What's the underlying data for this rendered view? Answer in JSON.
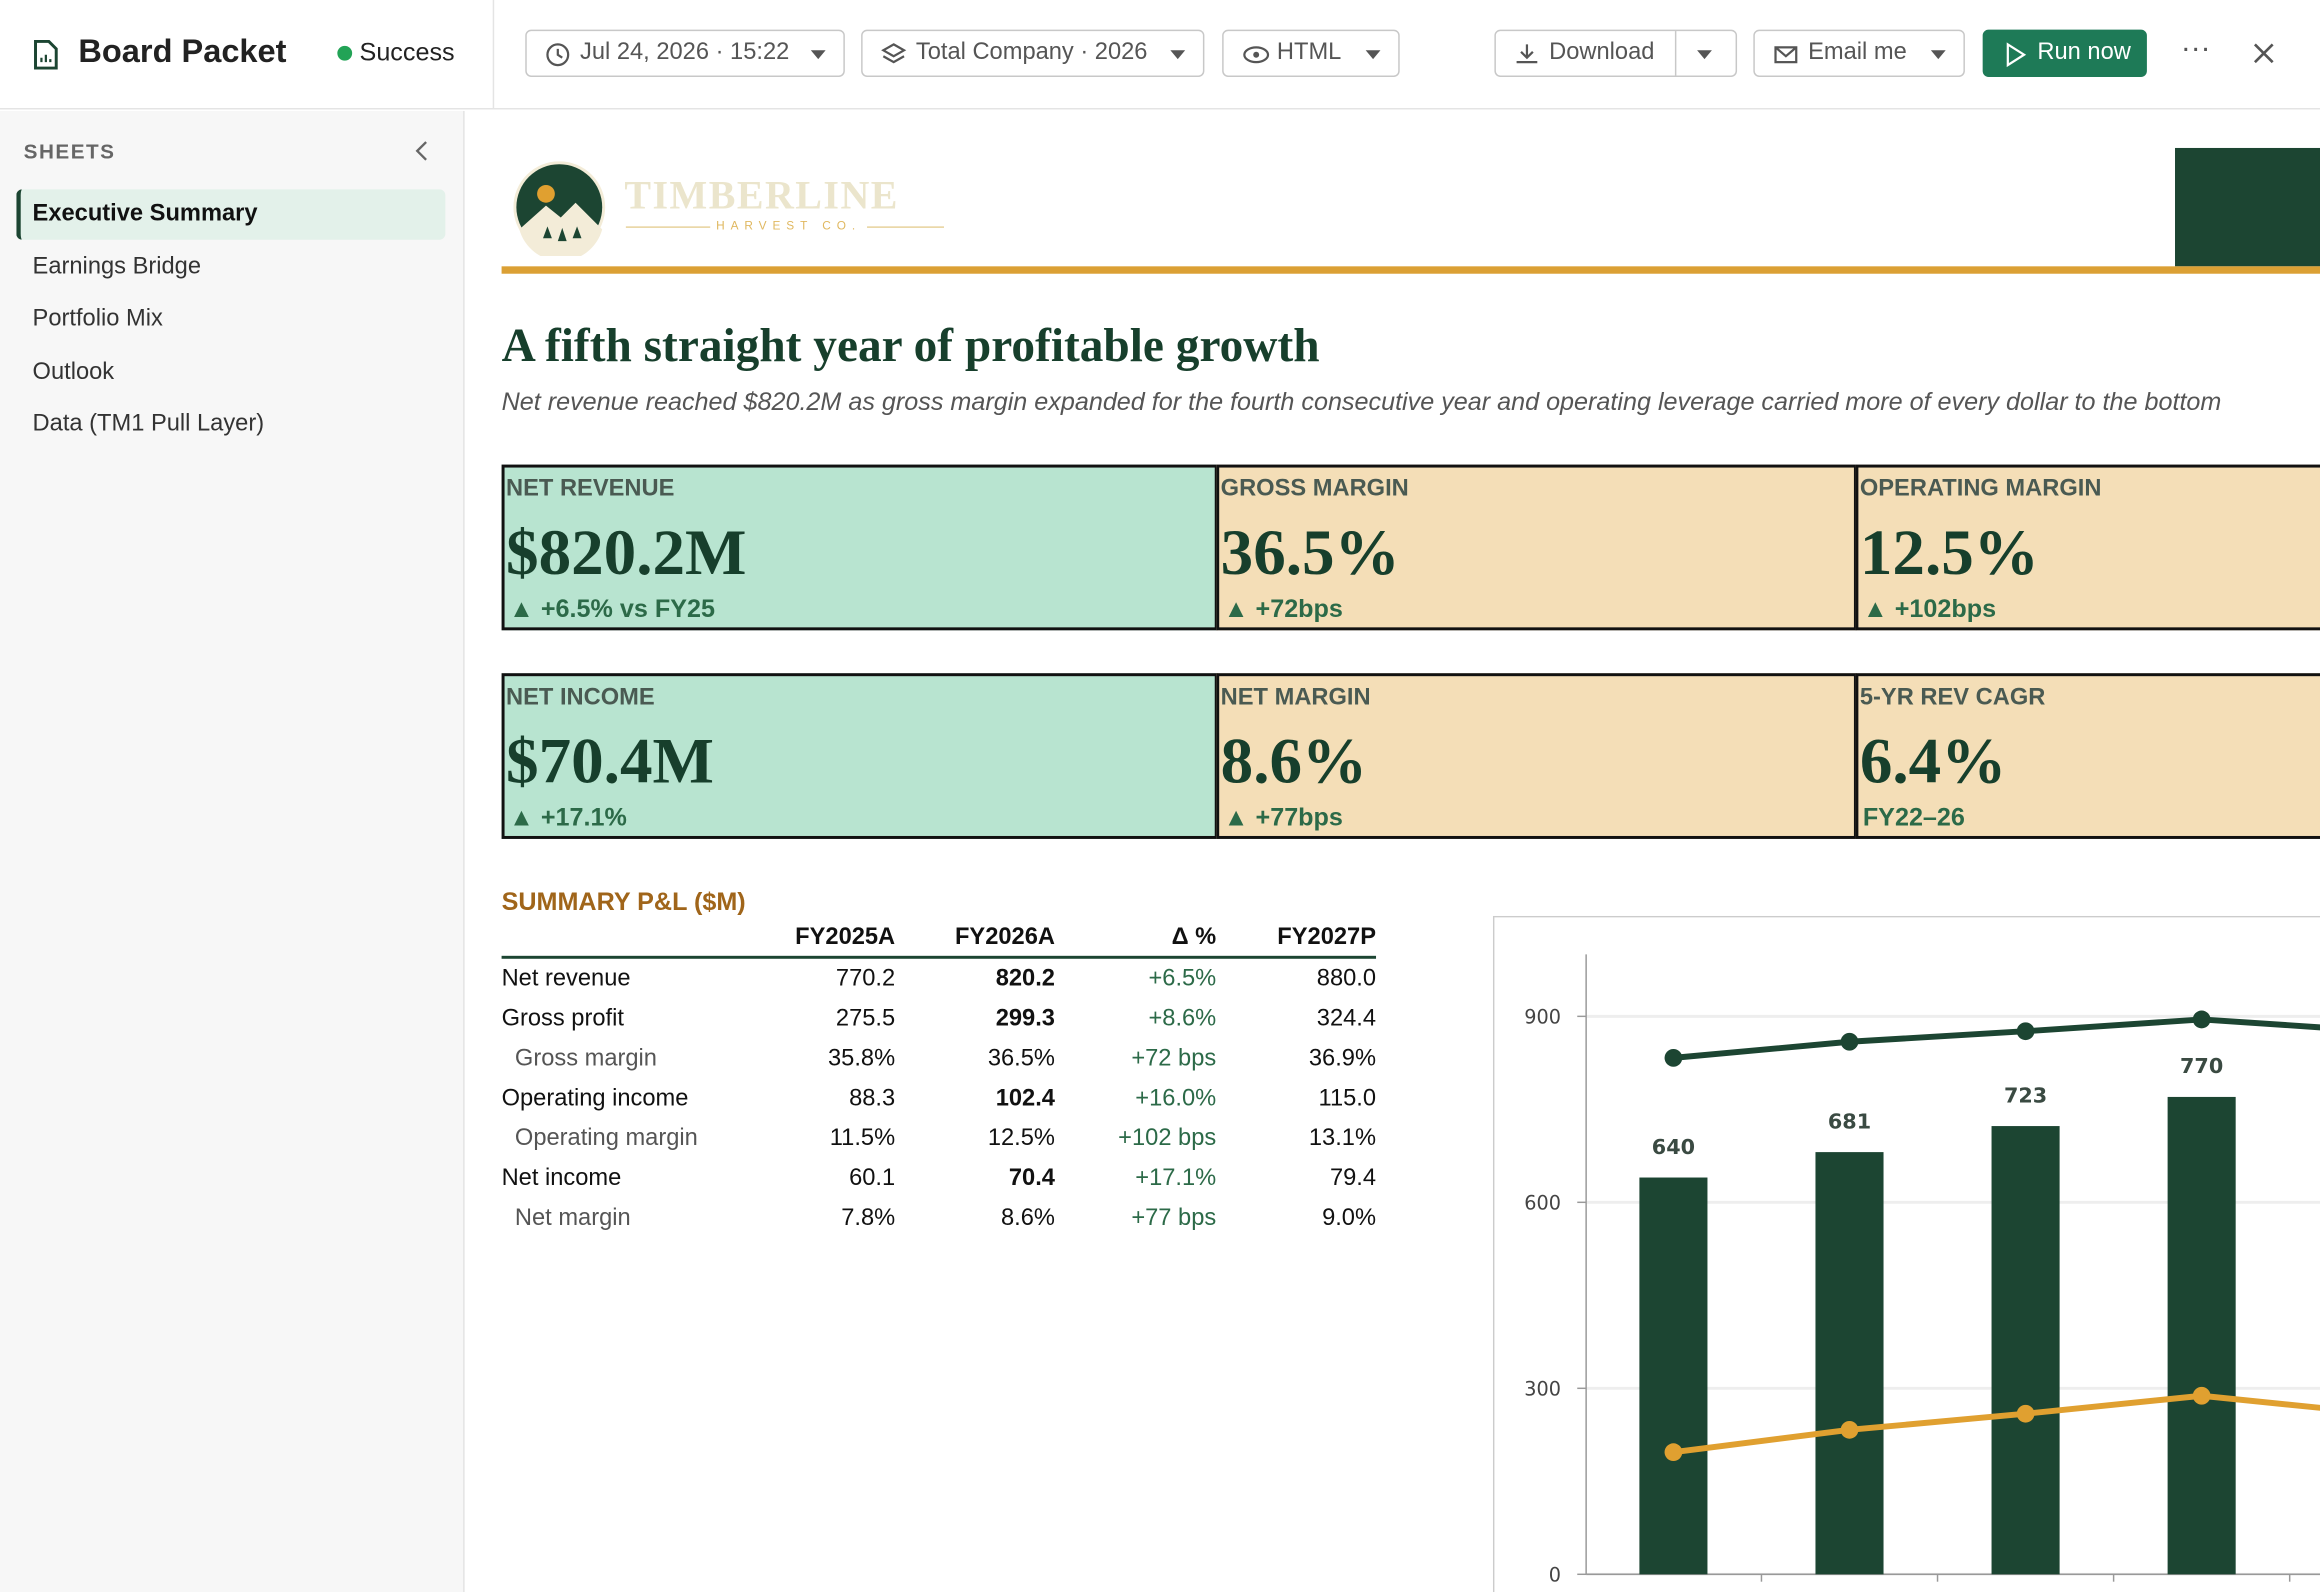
{
  "header": {
    "title": "Board Packet",
    "status": "Success",
    "run_time": "Jul 24, 2026 · 15:22",
    "scope": "Total Company · 2026",
    "format": "HTML",
    "download": "Download",
    "email": "Email me",
    "run": "Run now"
  },
  "sidebar": {
    "heading": "SHEETS",
    "items": [
      "Executive Summary",
      "Earnings Bridge",
      "Portfolio Mix",
      "Outlook",
      "Data (TM1 Pull Layer)"
    ],
    "active": 0
  },
  "document": {
    "logo": {
      "name": "TIMBERLINE",
      "tagline": "HARVEST CO."
    },
    "headline": "A fifth straight year of profitable growth",
    "subhead": "Net revenue reached $820.2M as gross margin expanded for the fourth consecutive year and operating leverage carried more of every dollar to the bottom",
    "kpis": [
      {
        "label": "NET REVENUE",
        "value": "$820.2M",
        "delta": "▲ +6.5% vs FY25",
        "color": "#b8e4d0"
      },
      {
        "label": "GROSS MARGIN",
        "value": "36.5%",
        "delta": "▲ +72bps",
        "color": "#f4deb7"
      },
      {
        "label": "OPERATING MARGIN",
        "value": "12.5%",
        "delta": "▲ +102bps",
        "color": "#f4deb7"
      },
      {
        "label": "NET INCOME",
        "value": "$70.4M",
        "delta": "▲ +17.1%",
        "color": "#b8e4d0"
      },
      {
        "label": "NET MARGIN",
        "value": "8.6%",
        "delta": "▲ +77bps",
        "color": "#f4deb7"
      },
      {
        "label": "5-YR REV CAGR",
        "value": "6.4%",
        "delta": "FY22–26",
        "color": "#f4deb7"
      }
    ],
    "table": {
      "title": "SUMMARY P&L ($M)",
      "columns": [
        "FY2025A",
        "FY2026A",
        "Δ %",
        "FY2027P"
      ],
      "rows": [
        {
          "label": "Net revenue",
          "indent": false,
          "cells": [
            "770.2",
            "820.2",
            "+6.5%",
            "880.0"
          ]
        },
        {
          "label": "Gross profit",
          "indent": false,
          "cells": [
            "275.5",
            "299.3",
            "+8.6%",
            "324.4"
          ]
        },
        {
          "label": "Gross margin",
          "indent": true,
          "cells": [
            "35.8%",
            "36.5%",
            "+72 bps",
            "36.9%"
          ]
        },
        {
          "label": "Operating income",
          "indent": false,
          "cells": [
            "88.3",
            "102.4",
            "+16.0%",
            "115.0"
          ]
        },
        {
          "label": "Operating margin",
          "indent": true,
          "cells": [
            "11.5%",
            "12.5%",
            "+102 bps",
            "13.1%"
          ]
        },
        {
          "label": "Net income",
          "indent": false,
          "cells": [
            "60.1",
            "70.4",
            "+17.1%",
            "79.4"
          ]
        },
        {
          "label": "Net margin",
          "indent": true,
          "cells": [
            "7.8%",
            "8.6%",
            "+77 bps",
            "9.0%"
          ]
        }
      ]
    }
  },
  "chart_data": {
    "type": "bar",
    "categories": [
      null,
      null,
      null,
      null
    ],
    "series": [
      {
        "type": "bar",
        "color": "#1c4532",
        "values": [
          640,
          681,
          723,
          770
        ]
      },
      {
        "type": "line",
        "color": "#1c4532",
        "values": [
          833,
          859,
          876,
          895
        ]
      },
      {
        "type": "line",
        "color": "#e0a030",
        "values": [
          197,
          233,
          259,
          288
        ]
      }
    ],
    "ylim": [
      0,
      1000
    ],
    "yticks": [
      0,
      300,
      600,
      900
    ],
    "grid": true
  }
}
